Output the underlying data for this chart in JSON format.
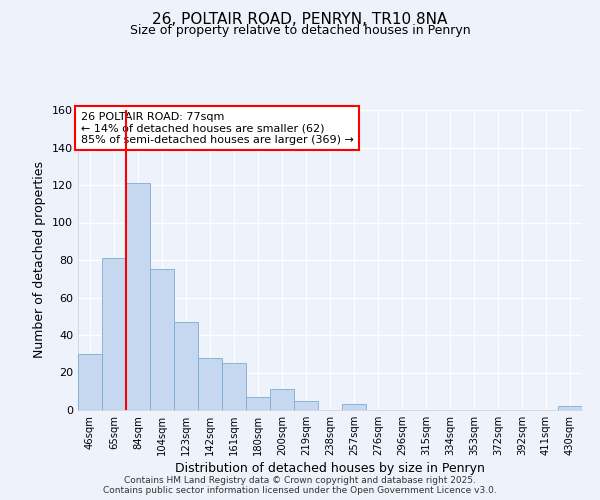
{
  "title": "26, POLTAIR ROAD, PENRYN, TR10 8NA",
  "subtitle": "Size of property relative to detached houses in Penryn",
  "xlabel": "Distribution of detached houses by size in Penryn",
  "ylabel": "Number of detached properties",
  "categories": [
    "46sqm",
    "65sqm",
    "84sqm",
    "104sqm",
    "123sqm",
    "142sqm",
    "161sqm",
    "180sqm",
    "200sqm",
    "219sqm",
    "238sqm",
    "257sqm",
    "276sqm",
    "296sqm",
    "315sqm",
    "334sqm",
    "353sqm",
    "372sqm",
    "392sqm",
    "411sqm",
    "430sqm"
  ],
  "values": [
    30,
    81,
    121,
    75,
    47,
    28,
    25,
    7,
    11,
    5,
    0,
    3,
    0,
    0,
    0,
    0,
    0,
    0,
    0,
    0,
    2
  ],
  "bar_color": "#c5d8f0",
  "bar_edge_color": "#7aadd4",
  "vline_x_index": 1.5,
  "vline_color": "red",
  "annotation_title": "26 POLTAIR ROAD: 77sqm",
  "annotation_line1": "← 14% of detached houses are smaller (62)",
  "annotation_line2": "85% of semi-detached houses are larger (369) →",
  "annotation_box_color": "white",
  "annotation_box_edge": "red",
  "ylim": [
    0,
    160
  ],
  "yticks": [
    0,
    20,
    40,
    60,
    80,
    100,
    120,
    140,
    160
  ],
  "footer_line1": "Contains HM Land Registry data © Crown copyright and database right 2025.",
  "footer_line2": "Contains public sector information licensed under the Open Government Licence v3.0.",
  "background_color": "#eef2fb"
}
